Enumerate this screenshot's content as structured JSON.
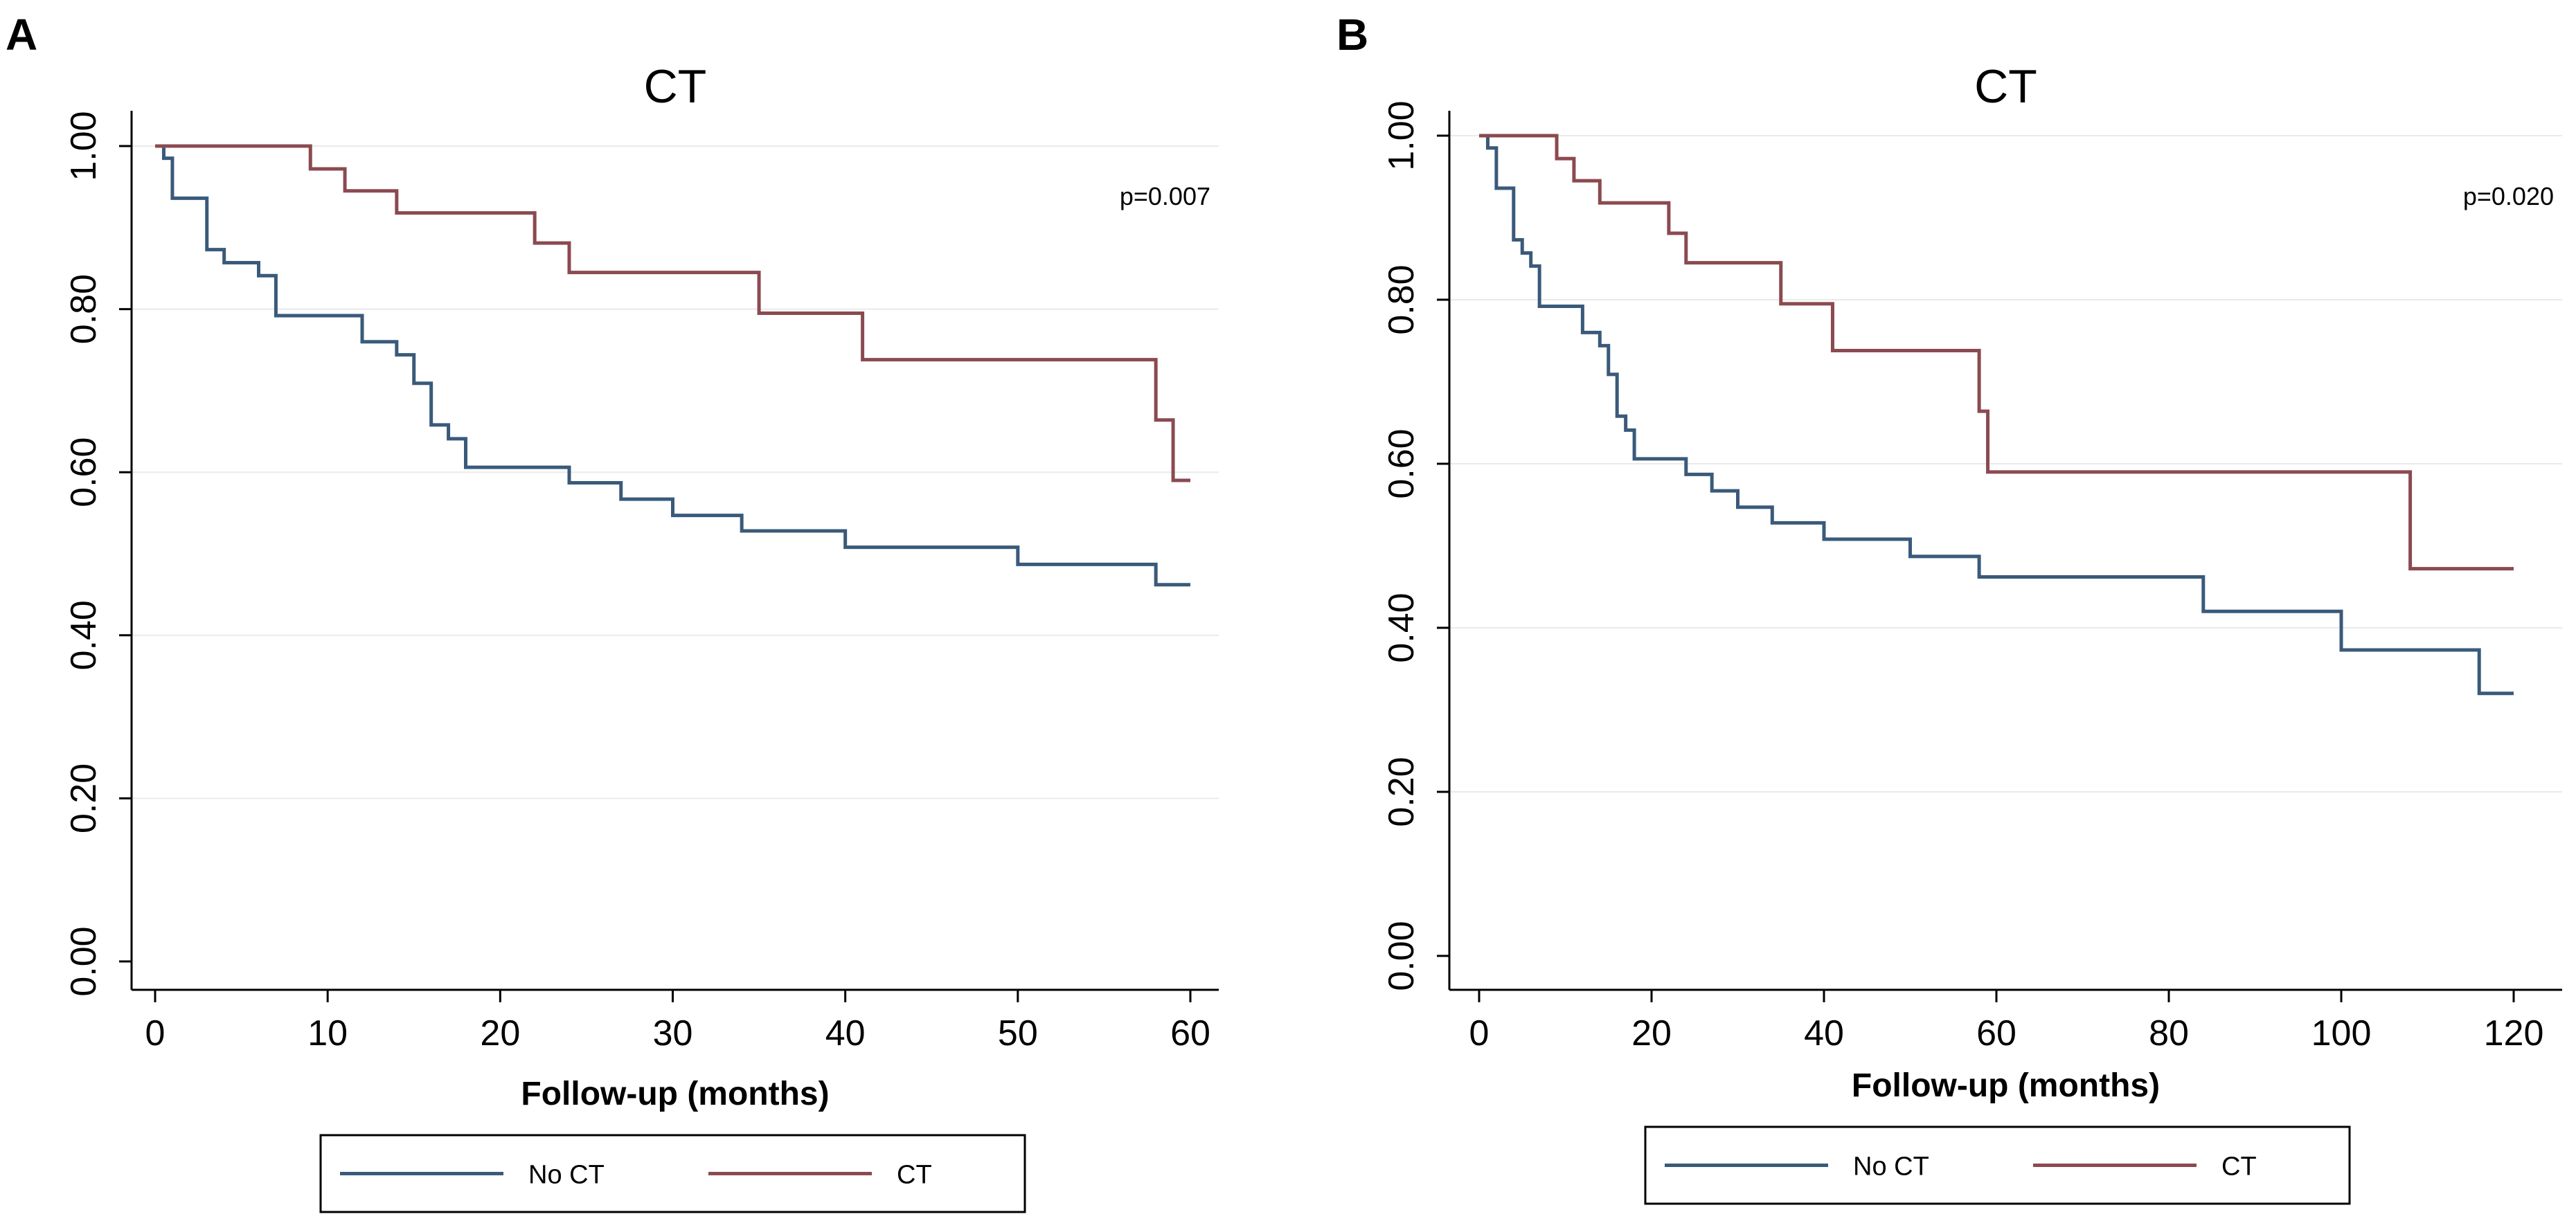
{
  "chart_data": [
    {
      "panel": "A",
      "type": "line",
      "step": true,
      "title": "CT",
      "xlabel": "Follow-up (months)",
      "ylabel": "",
      "xlim": [
        0,
        60
      ],
      "ylim": [
        0,
        1
      ],
      "xticks": [
        0,
        10,
        20,
        30,
        40,
        50,
        60
      ],
      "xtick_labels": [
        "0",
        "10",
        "20",
        "30",
        "40",
        "50",
        "60"
      ],
      "yticks": [
        0,
        0.2,
        0.4,
        0.6,
        0.8,
        1.0
      ],
      "ytick_labels": [
        "0.00",
        "0.20",
        "0.40",
        "0.60",
        "0.80",
        "1.00"
      ],
      "grid": true,
      "annotation": "p=0.007",
      "legend_position": "bottom",
      "series": [
        {
          "name": "No CT",
          "color": "#3a5a7a",
          "x": [
            0,
            0.5,
            1,
            3,
            4,
            6,
            7,
            12,
            14,
            15,
            16,
            17,
            18,
            24,
            27,
            30,
            34,
            40,
            50,
            58,
            60
          ],
          "y": [
            1.0,
            0.985,
            0.936,
            0.873,
            0.857,
            0.841,
            0.792,
            0.76,
            0.744,
            0.709,
            0.658,
            0.641,
            0.606,
            0.587,
            0.567,
            0.547,
            0.528,
            0.508,
            0.487,
            0.462,
            0.462
          ]
        },
        {
          "name": "CT",
          "color": "#8b4a50",
          "x": [
            0,
            9,
            11,
            14,
            22,
            24,
            35,
            41,
            58,
            59,
            60
          ],
          "y": [
            1.0,
            0.972,
            0.945,
            0.918,
            0.881,
            0.845,
            0.795,
            0.738,
            0.664,
            0.59,
            0.59
          ]
        }
      ]
    },
    {
      "panel": "B",
      "type": "line",
      "step": true,
      "title": "CT",
      "xlabel": "Follow-up (months)",
      "ylabel": "",
      "xlim": [
        0,
        120
      ],
      "ylim": [
        0,
        1
      ],
      "xticks": [
        0,
        20,
        40,
        60,
        80,
        100,
        120
      ],
      "xtick_labels": [
        "0",
        "20",
        "40",
        "60",
        "80",
        "100",
        "120"
      ],
      "yticks": [
        0,
        0.2,
        0.4,
        0.6,
        0.8,
        1.0
      ],
      "ytick_labels": [
        "0.00",
        "0.20",
        "0.40",
        "0.60",
        "0.80",
        "1.00"
      ],
      "grid": true,
      "annotation": "p=0.020",
      "legend_position": "bottom",
      "series": [
        {
          "name": "No CT",
          "color": "#3a5a7a",
          "x": [
            0,
            1,
            2,
            4,
            5,
            6,
            7,
            12,
            14,
            15,
            16,
            17,
            18,
            24,
            27,
            30,
            34,
            40,
            50,
            58,
            84,
            100,
            116,
            120
          ],
          "y": [
            1.0,
            0.985,
            0.936,
            0.873,
            0.857,
            0.841,
            0.792,
            0.76,
            0.744,
            0.709,
            0.658,
            0.641,
            0.606,
            0.587,
            0.567,
            0.547,
            0.528,
            0.508,
            0.487,
            0.462,
            0.42,
            0.373,
            0.32,
            0.32
          ]
        },
        {
          "name": "CT",
          "color": "#8b4a50",
          "x": [
            0,
            9,
            11,
            14,
            22,
            24,
            35,
            41,
            58,
            59,
            108,
            120
          ],
          "y": [
            1.0,
            0.972,
            0.945,
            0.918,
            0.881,
            0.845,
            0.795,
            0.738,
            0.664,
            0.59,
            0.472,
            0.472
          ]
        }
      ]
    }
  ]
}
